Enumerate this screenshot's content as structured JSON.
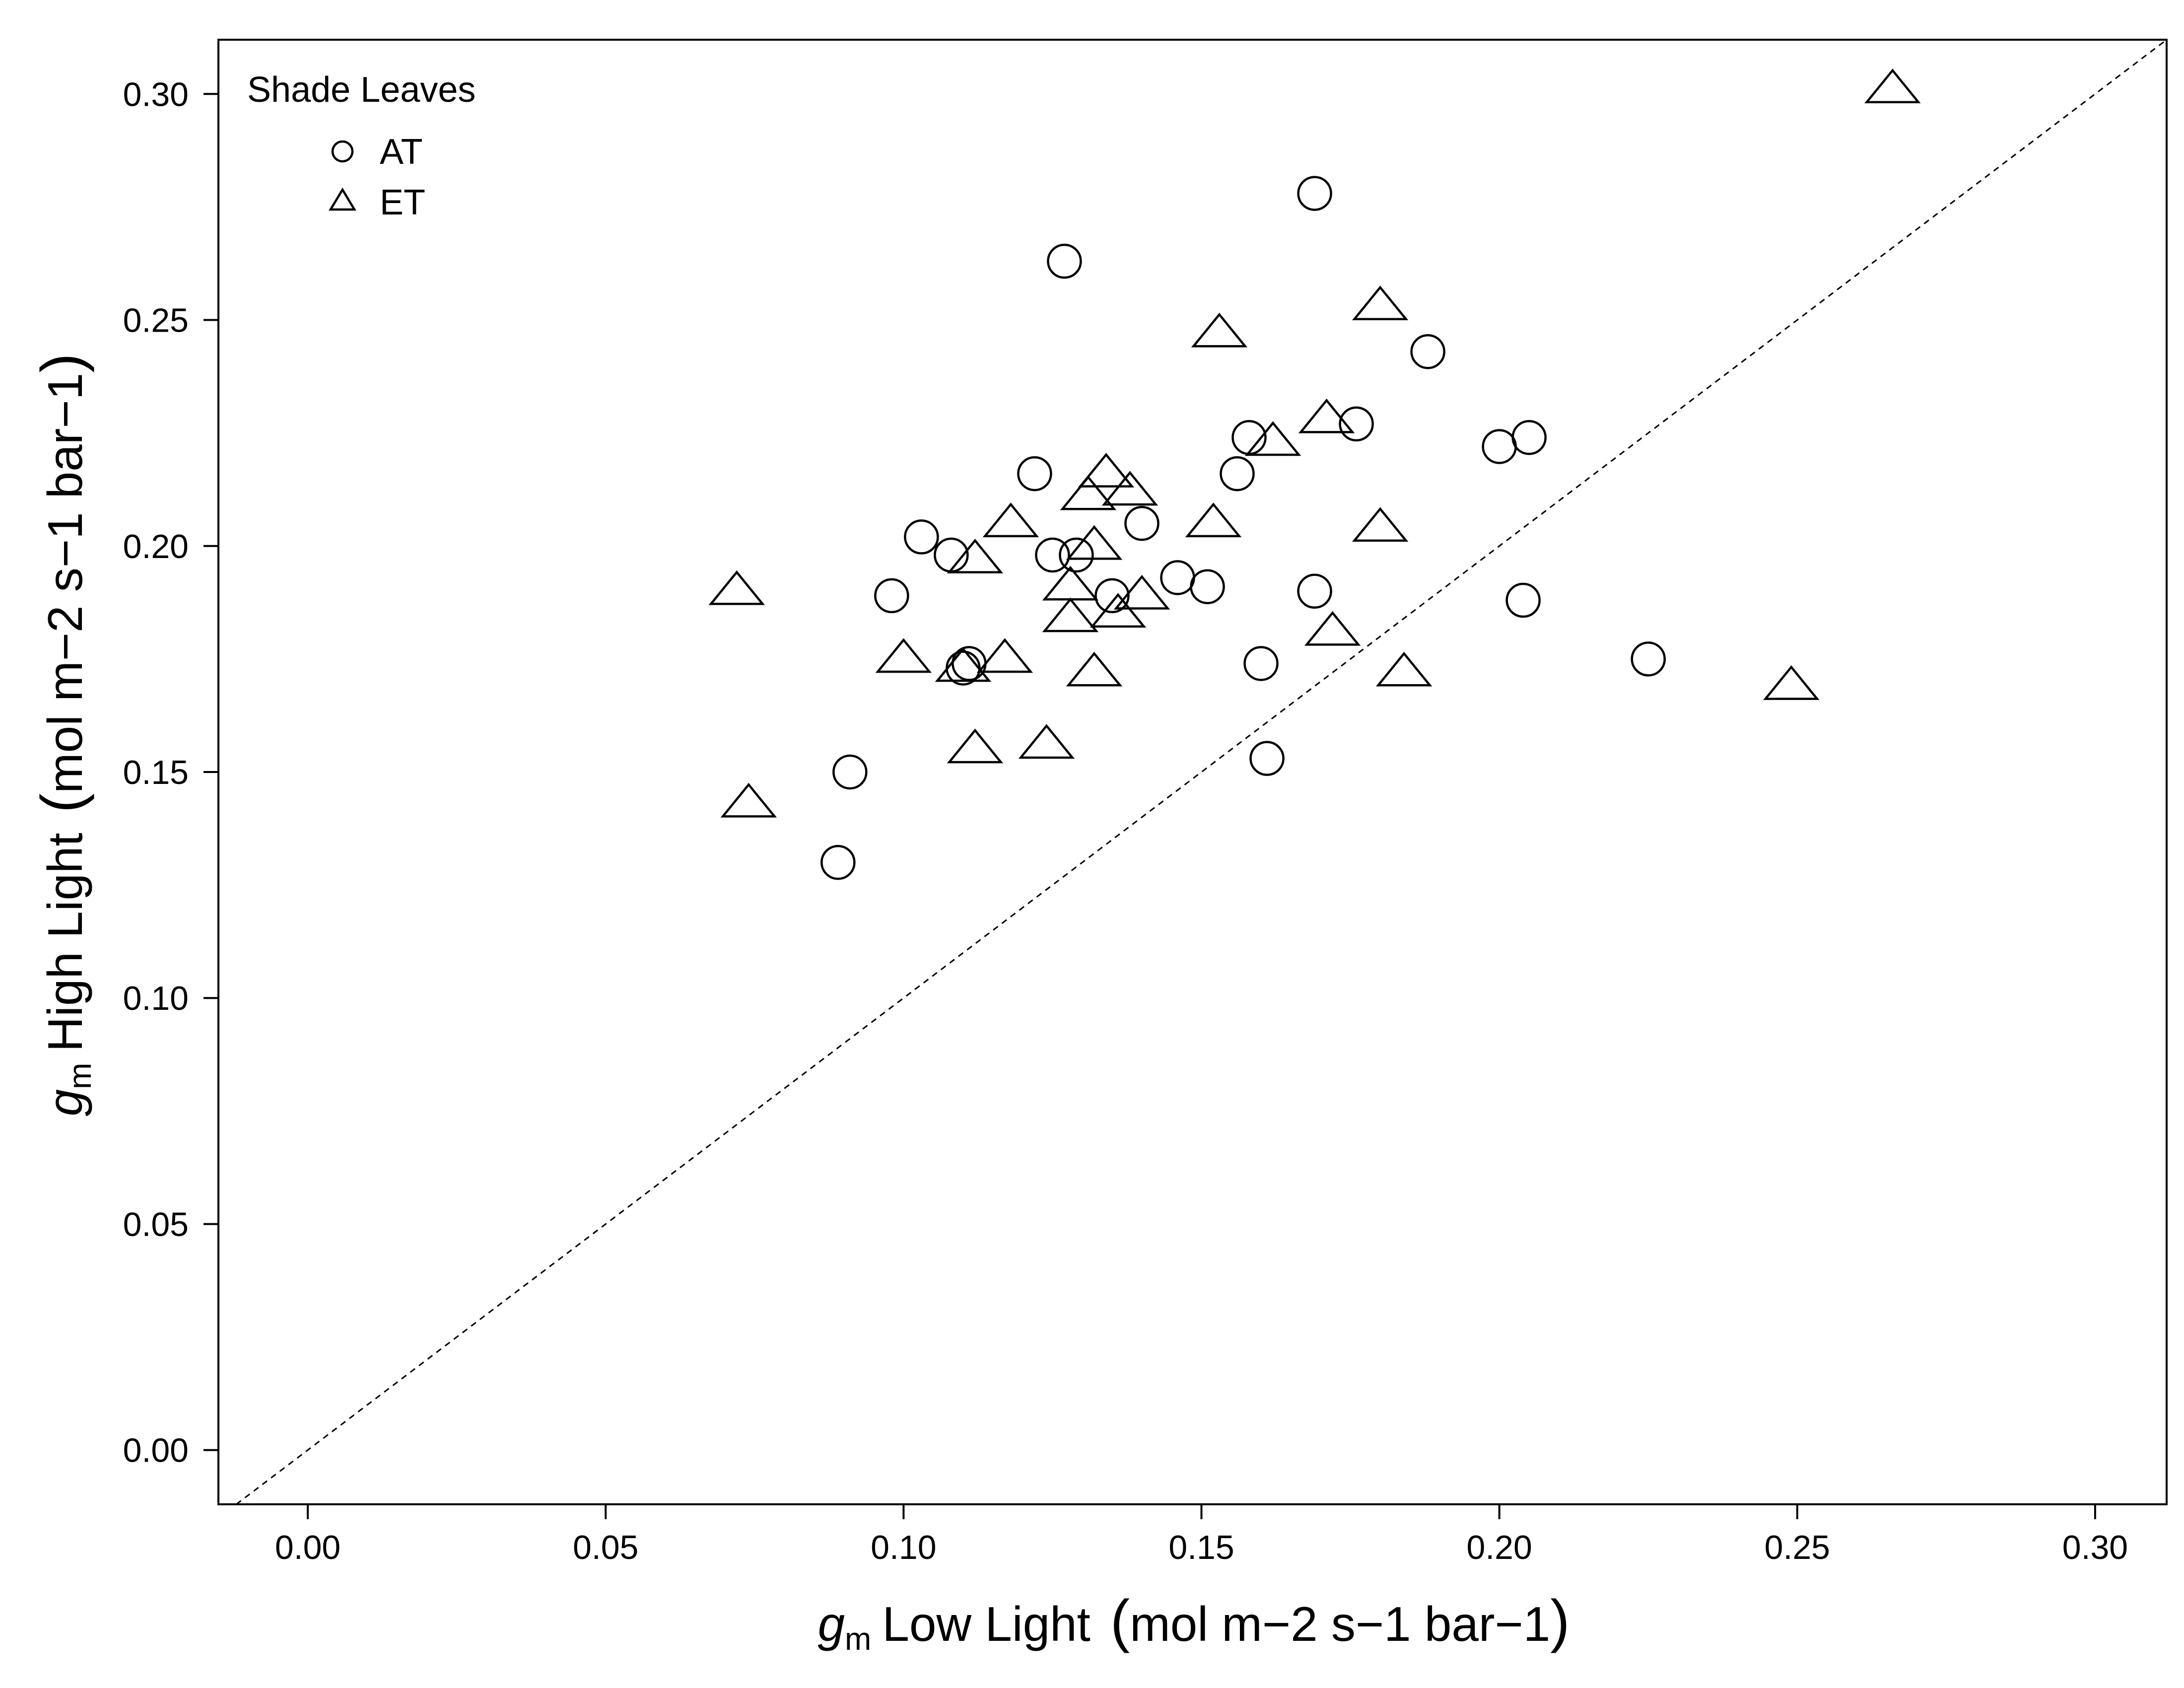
{
  "chart_data": {
    "type": "scatter",
    "title": "",
    "x_axis": {
      "label_symbol": "g",
      "label_subscript": "m",
      "label_text": "Low Light",
      "units": "mol m−2 s−1 bar−1",
      "range": [
        -0.015,
        0.312
      ],
      "ticks": [
        "0.00",
        "0.05",
        "0.10",
        "0.15",
        "0.20",
        "0.25",
        "0.30"
      ]
    },
    "y_axis": {
      "label_symbol": "g",
      "label_subscript": "m",
      "label_text": "High Light",
      "units": "mol m−2 s−1 bar−1",
      "range": [
        -0.012,
        0.312
      ],
      "ticks": [
        "0.00",
        "0.05",
        "0.10",
        "0.15",
        "0.20",
        "0.25",
        "0.30"
      ]
    },
    "grid": false,
    "reference_line": {
      "type": "1:1",
      "style": "dashed"
    },
    "legend": {
      "title": "Shade Leaves",
      "position": "top-left",
      "entries": [
        {
          "name": "AT",
          "marker": "circle"
        },
        {
          "name": "ET",
          "marker": "triangle"
        }
      ]
    },
    "series": [
      {
        "name": "AT",
        "marker": "circle",
        "points": [
          [
            0.169,
            0.278
          ],
          [
            0.127,
            0.263
          ],
          [
            0.188,
            0.243
          ],
          [
            0.176,
            0.227
          ],
          [
            0.158,
            0.224
          ],
          [
            0.2,
            0.222
          ],
          [
            0.205,
            0.224
          ],
          [
            0.156,
            0.216
          ],
          [
            0.122,
            0.216
          ],
          [
            0.14,
            0.205
          ],
          [
            0.103,
            0.202
          ],
          [
            0.108,
            0.198
          ],
          [
            0.125,
            0.198
          ],
          [
            0.129,
            0.198
          ],
          [
            0.146,
            0.193
          ],
          [
            0.151,
            0.191
          ],
          [
            0.098,
            0.189
          ],
          [
            0.135,
            0.189
          ],
          [
            0.169,
            0.19
          ],
          [
            0.204,
            0.188
          ],
          [
            0.225,
            0.175
          ],
          [
            0.16,
            0.174
          ],
          [
            0.11,
            0.173
          ],
          [
            0.111,
            0.174
          ],
          [
            0.091,
            0.15
          ],
          [
            0.161,
            0.153
          ],
          [
            0.089,
            0.13
          ]
        ]
      },
      {
        "name": "ET",
        "marker": "triangle",
        "points": [
          [
            0.266,
            0.301
          ],
          [
            0.18,
            0.253
          ],
          [
            0.153,
            0.247
          ],
          [
            0.171,
            0.228
          ],
          [
            0.162,
            0.223
          ],
          [
            0.134,
            0.216
          ],
          [
            0.138,
            0.212
          ],
          [
            0.131,
            0.211
          ],
          [
            0.118,
            0.205
          ],
          [
            0.152,
            0.205
          ],
          [
            0.18,
            0.204
          ],
          [
            0.132,
            0.2
          ],
          [
            0.112,
            0.197
          ],
          [
            0.072,
            0.19
          ],
          [
            0.128,
            0.191
          ],
          [
            0.14,
            0.189
          ],
          [
            0.136,
            0.185
          ],
          [
            0.128,
            0.184
          ],
          [
            0.172,
            0.181
          ],
          [
            0.1,
            0.175
          ],
          [
            0.117,
            0.175
          ],
          [
            0.11,
            0.173
          ],
          [
            0.132,
            0.172
          ],
          [
            0.184,
            0.172
          ],
          [
            0.249,
            0.169
          ],
          [
            0.112,
            0.155
          ],
          [
            0.124,
            0.156
          ],
          [
            0.074,
            0.143
          ]
        ]
      }
    ]
  }
}
